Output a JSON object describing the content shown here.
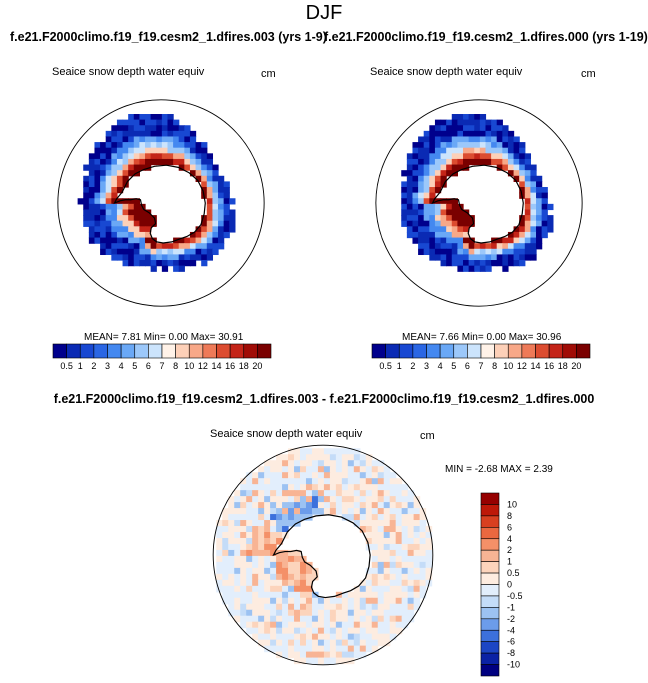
{
  "figure": {
    "title": "DJF",
    "case_a": "f.e21.F2000climo.f19_f19.cesm2_1.dfires.003 (yrs 1-9)",
    "case_b": "f.e21.F2000climo.f19_f19.cesm2_1.dfires.000 (yrs 1-19)",
    "diff_title": "f.e21.F2000climo.f19_f19.cesm2_1.dfires.003 - f.e21.F2000climo.f19_f19.cesm2_1.dfires.000"
  },
  "panels": {
    "a": {
      "variable": "Seaice snow depth water equiv",
      "units": "cm",
      "stats": "MEAN=  7.81  Min=   0.00  Max=  30.91"
    },
    "b": {
      "variable": "Seaice snow depth water equiv",
      "units": "cm",
      "stats": "MEAN=  7.66  Min=   0.00  Max=  30.96"
    },
    "diff": {
      "variable": "Seaice snow depth water equiv",
      "units": "cm",
      "stats": "MIN =  -2.68  MAX =   2.39"
    }
  },
  "chart_data": [
    {
      "type": "heatmap",
      "projection": "south-polar-stereographic",
      "title": "Seaice snow depth water equiv",
      "units": "cm",
      "mean": 7.81,
      "min": 0.0,
      "max": 30.91,
      "colorbar_ticks": [
        "0.5",
        "1",
        "2",
        "3",
        "4",
        "5",
        "6",
        "7",
        "8",
        "10",
        "12",
        "14",
        "16",
        "18",
        "20"
      ],
      "colorbar_colors": [
        "#00008c",
        "#0a2ab4",
        "#1848d2",
        "#2a66e4",
        "#4488f0",
        "#6aa8f6",
        "#9cc8fa",
        "#cce4fc",
        "#fff2e8",
        "#fdd0b8",
        "#f8a888",
        "#ee7a58",
        "#dc4c30",
        "#c42418",
        "#a00c06",
        "#7a0000"
      ],
      "legend": "bottom"
    },
    {
      "type": "heatmap",
      "projection": "south-polar-stereographic",
      "title": "Seaice snow depth water equiv",
      "units": "cm",
      "mean": 7.66,
      "min": 0.0,
      "max": 30.96,
      "colorbar_ticks": [
        "0.5",
        "1",
        "2",
        "3",
        "4",
        "5",
        "6",
        "7",
        "8",
        "10",
        "12",
        "14",
        "16",
        "18",
        "20"
      ],
      "colorbar_colors": [
        "#00008c",
        "#0a2ab4",
        "#1848d2",
        "#2a66e4",
        "#4488f0",
        "#6aa8f6",
        "#9cc8fa",
        "#cce4fc",
        "#fff2e8",
        "#fdd0b8",
        "#f8a888",
        "#ee7a58",
        "#dc4c30",
        "#c42418",
        "#a00c06",
        "#7a0000"
      ],
      "legend": "bottom"
    },
    {
      "type": "heatmap",
      "projection": "south-polar-stereographic",
      "title": "Seaice snow depth water equiv",
      "units": "cm",
      "min": -2.68,
      "max": 2.39,
      "colorbar_ticks": [
        "10",
        "8",
        "6",
        "4",
        "2",
        "1",
        "0.5",
        "0",
        "-0.5",
        "-1",
        "-2",
        "-4",
        "-6",
        "-8",
        "-10"
      ],
      "colorbar_colors": [
        "#960000",
        "#be1808",
        "#d84020",
        "#ea6840",
        "#f49068",
        "#f8b494",
        "#fcd4bc",
        "#fdece0",
        "#e2eefc",
        "#c4dcf8",
        "#9cc2f2",
        "#6c9cea",
        "#3c70dc",
        "#1c46c4",
        "#0a22a4",
        "#000080"
      ],
      "legend": "right"
    }
  ]
}
